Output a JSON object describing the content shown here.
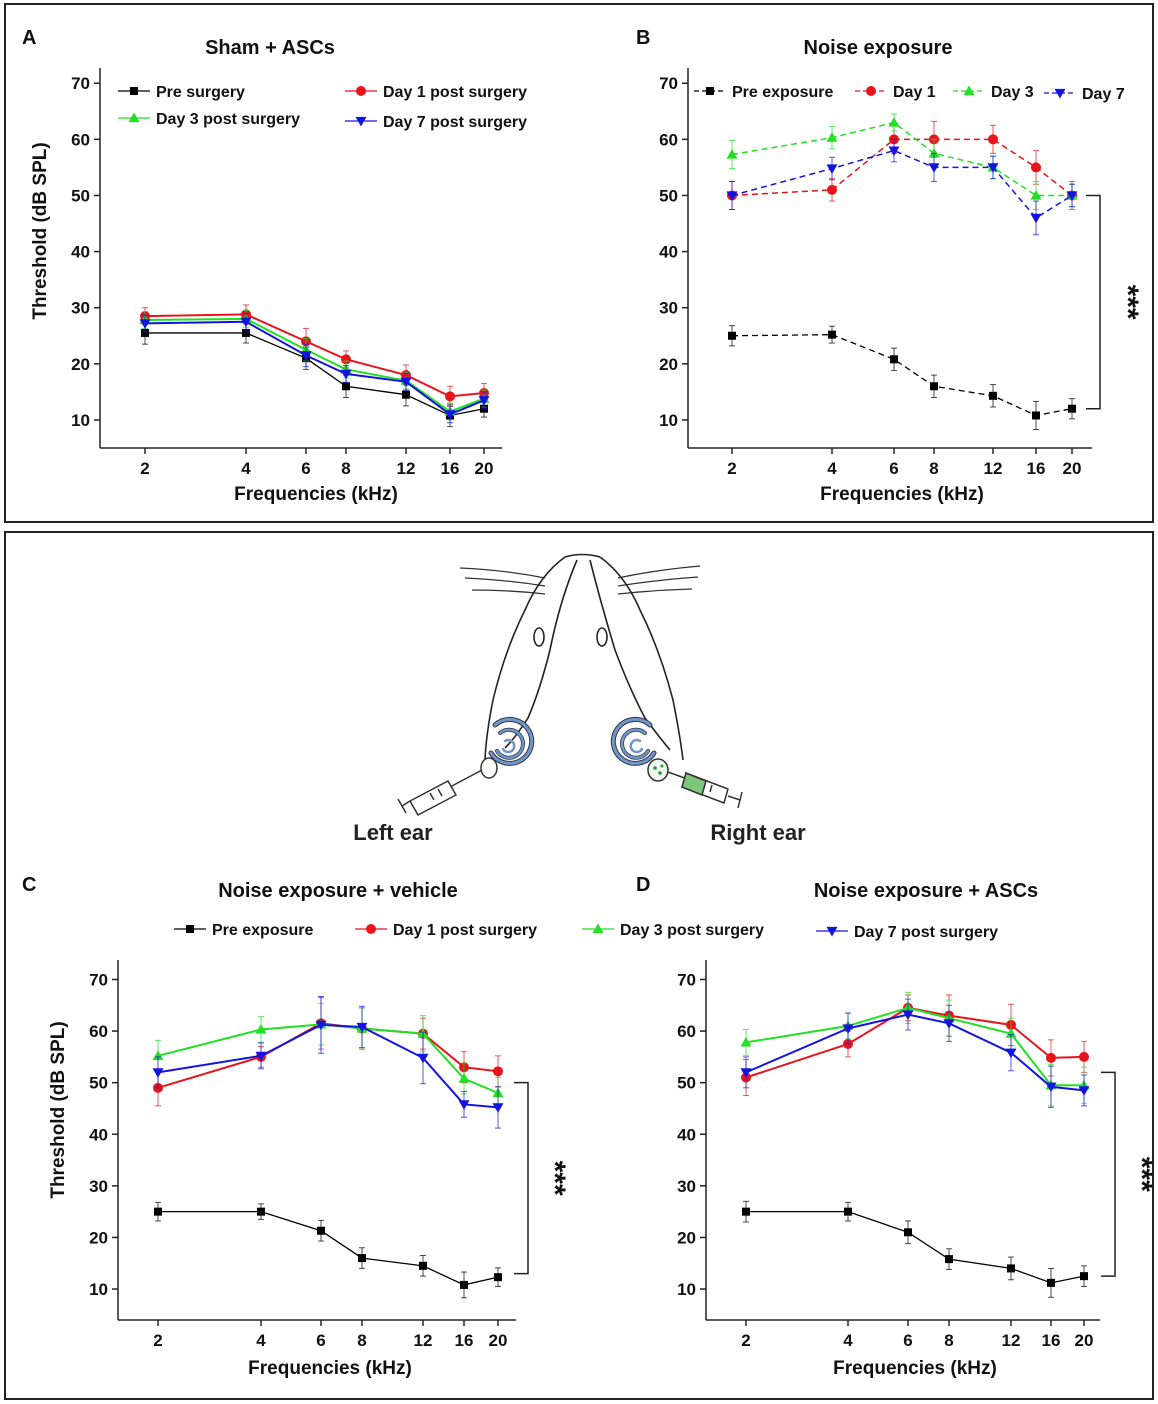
{
  "panel_letters": {
    "a": "A",
    "b": "B",
    "c": "C",
    "d": "D"
  },
  "diagram": {
    "left_label": "Left ear",
    "right_label": "Right ear"
  },
  "colors": {
    "pre": "#000000",
    "day1": "#e8141c",
    "day3": "#22e022",
    "day7": "#1414e0"
  },
  "chart_data": [
    {
      "panel": "A",
      "type": "line",
      "title": "Sham +  ASCs",
      "xlabel": "Frequencies (kHz)",
      "ylabel": "Threshold (dB SPL)",
      "x_ticks": [
        "2",
        "4",
        "6",
        "8",
        "12",
        "16",
        "20"
      ],
      "y_ticks": [
        "10",
        "20",
        "30",
        "40",
        "50",
        "60",
        "70"
      ],
      "ylim": [
        5,
        72
      ],
      "categories": [
        2,
        4,
        6,
        8,
        12,
        16,
        20
      ],
      "significance": "",
      "series": [
        {
          "name": "Pre surgery",
          "key": "pre",
          "marker": "square",
          "values": [
            25.5,
            25.5,
            21,
            16,
            14.5,
            10.8,
            12
          ],
          "errors": [
            2,
            1.8,
            2,
            2,
            2,
            2,
            1.5
          ]
        },
        {
          "name": "Day 1 post surgery",
          "key": "day1",
          "marker": "circle",
          "values": [
            28.5,
            28.8,
            24,
            20.8,
            18,
            14.2,
            14.8
          ],
          "errors": [
            1.5,
            1.7,
            2.3,
            1.5,
            1.8,
            1.8,
            1.7
          ]
        },
        {
          "name": "Day 3 post surgery",
          "key": "day3",
          "marker": "triangle-up",
          "values": [
            27.8,
            28,
            22.5,
            19,
            17,
            11.5,
            13.8
          ],
          "errors": [
            1.5,
            1.5,
            2,
            1.5,
            1.5,
            1.5,
            1.5
          ]
        },
        {
          "name": "Day 7 post surgery",
          "key": "day7",
          "marker": "triangle-down",
          "values": [
            27.2,
            27.5,
            21.5,
            18.2,
            16.8,
            11,
            13.5
          ],
          "errors": [
            1.5,
            1.5,
            2,
            1.5,
            1.5,
            1.5,
            1.5
          ]
        }
      ]
    },
    {
      "panel": "B",
      "type": "line",
      "title": "Noise exposure",
      "xlabel": "Frequencies (kHz)",
      "ylabel": "",
      "x_ticks": [
        "2",
        "4",
        "6",
        "8",
        "12",
        "16",
        "20"
      ],
      "y_ticks": [
        "10",
        "20",
        "30",
        "40",
        "50",
        "60",
        "70"
      ],
      "ylim": [
        5,
        72
      ],
      "categories": [
        2,
        4,
        6,
        8,
        12,
        16,
        20
      ],
      "significance": "***",
      "series": [
        {
          "name": "Pre exposure",
          "key": "pre",
          "marker": "square",
          "values": [
            25,
            25.2,
            20.8,
            16,
            14.3,
            10.8,
            12
          ],
          "errors": [
            1.8,
            1.5,
            2,
            2,
            2,
            2.5,
            1.8
          ]
        },
        {
          "name": "Day 1",
          "key": "day1",
          "marker": "circle",
          "values": [
            50,
            51,
            60,
            60,
            60,
            55,
            50
          ],
          "errors": [
            2.5,
            2,
            2.5,
            3.2,
            2.5,
            3,
            2.5
          ]
        },
        {
          "name": "Day 3",
          "key": "day3",
          "marker": "triangle-up",
          "values": [
            57.3,
            60.3,
            63,
            57.5,
            55,
            50,
            50
          ],
          "errors": [
            2.5,
            2,
            1.5,
            2.5,
            2,
            2.5,
            2
          ]
        },
        {
          "name": "Day 7",
          "key": "day7",
          "marker": "triangle-down",
          "values": [
            50,
            54.8,
            58,
            55,
            55,
            46,
            50
          ],
          "errors": [
            2.5,
            2,
            2,
            2.5,
            2,
            3,
            2
          ]
        }
      ]
    },
    {
      "panel": "C",
      "type": "line",
      "title": "Noise exposure + vehicle",
      "xlabel": "Frequencies (kHz)",
      "ylabel": "Threshold (dB SPL)",
      "x_ticks": [
        "2",
        "4",
        "6",
        "8",
        "12",
        "16",
        "20"
      ],
      "y_ticks": [
        "10",
        "20",
        "30",
        "40",
        "50",
        "60",
        "70"
      ],
      "ylim": [
        4,
        73
      ],
      "categories": [
        2,
        4,
        6,
        8,
        12,
        16,
        20
      ],
      "significance": "***",
      "series": [
        {
          "name": "Pre exposure",
          "key": "pre",
          "marker": "square",
          "values": [
            25,
            25,
            21.3,
            16,
            14.5,
            10.8,
            12.3
          ],
          "errors": [
            1.8,
            1.5,
            2,
            2,
            2,
            2.5,
            1.8
          ]
        },
        {
          "name": "Day 1 post surgery",
          "key": "day1",
          "marker": "circle",
          "values": [
            49,
            55,
            61.5,
            60.5,
            59.5,
            53,
            52.2
          ],
          "errors": [
            3.5,
            2,
            5,
            4,
            3,
            3,
            3
          ]
        },
        {
          "name": "Day 3 post surgery",
          "key": "day3",
          "marker": "triangle-up",
          "values": [
            55.2,
            60.3,
            61.3,
            60.5,
            59.5,
            50.8,
            48
          ],
          "errors": [
            3,
            2.5,
            4,
            4,
            3.5,
            3,
            3
          ]
        },
        {
          "name": "Day 7 post surgery",
          "key": "day7",
          "marker": "triangle-down",
          "values": [
            52,
            55.2,
            61.2,
            60.8,
            54.8,
            45.8,
            45.2
          ],
          "errors": [
            3,
            2.5,
            5.5,
            4,
            5,
            2.5,
            4
          ]
        }
      ]
    },
    {
      "panel": "D",
      "type": "line",
      "title": "Noise exposure + ASCs",
      "xlabel": "Frequencies (kHz)",
      "ylabel": "",
      "x_ticks": [
        "2",
        "4",
        "6",
        "8",
        "12",
        "16",
        "20"
      ],
      "y_ticks": [
        "10",
        "20",
        "30",
        "40",
        "50",
        "60",
        "70"
      ],
      "ylim": [
        4,
        73
      ],
      "categories": [
        2,
        4,
        6,
        8,
        12,
        16,
        20
      ],
      "significance": "***",
      "series": [
        {
          "name": "Pre exposure",
          "key": "pre",
          "marker": "square",
          "values": [
            25,
            25,
            21,
            15.8,
            14,
            11.2,
            12.5
          ],
          "errors": [
            2,
            1.8,
            2.2,
            2,
            2.2,
            2.8,
            2
          ]
        },
        {
          "name": "Day 1 post surgery",
          "key": "day1",
          "marker": "circle",
          "values": [
            51,
            57.5,
            64.5,
            63,
            61.2,
            54.8,
            55
          ],
          "errors": [
            3.5,
            2.5,
            2.5,
            4,
            4,
            3.5,
            3
          ]
        },
        {
          "name": "Day 3 post surgery",
          "key": "day3",
          "marker": "triangle-up",
          "values": [
            57.8,
            61,
            64.5,
            62.5,
            59.5,
            49.5,
            49.5
          ],
          "errors": [
            2.5,
            2.5,
            3,
            3.5,
            3,
            4,
            3.5
          ]
        },
        {
          "name": "Day 7 post surgery",
          "key": "day7",
          "marker": "triangle-down",
          "values": [
            52,
            60.5,
            63.2,
            61.5,
            55.8,
            49.2,
            48.5
          ],
          "errors": [
            3,
            3,
            3,
            3.5,
            3.5,
            4,
            3
          ]
        }
      ]
    }
  ]
}
